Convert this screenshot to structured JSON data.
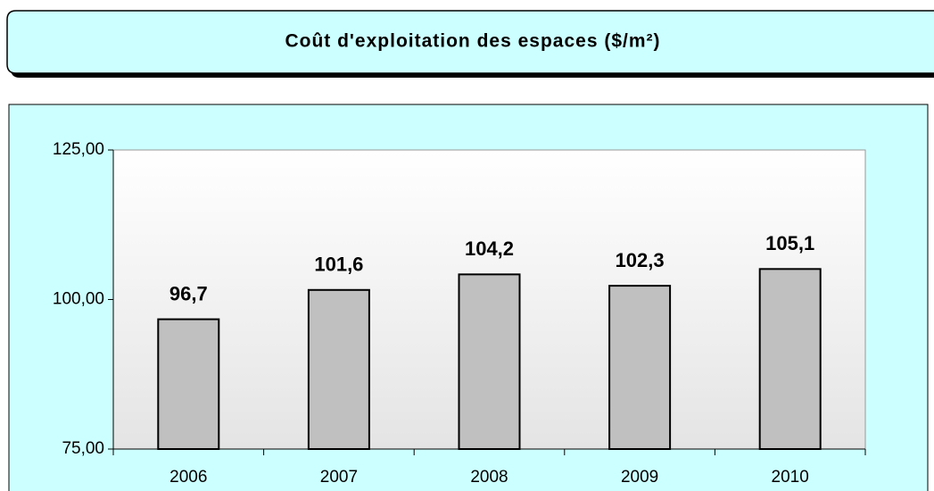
{
  "chart_data": {
    "type": "bar",
    "title": "Coût d'exploitation des espaces ($/m²)",
    "categories": [
      "2006",
      "2007",
      "2008",
      "2009",
      "2010"
    ],
    "values": [
      96.7,
      101.6,
      104.2,
      102.3,
      105.1
    ],
    "value_labels": [
      "96,7",
      "101,6",
      "104,2",
      "102,3",
      "105,1"
    ],
    "color": "#c0c0c0",
    "ylim": [
      75,
      125
    ],
    "yticks": [
      {
        "value": 75,
        "label": "75,00"
      },
      {
        "value": 100,
        "label": "100,00"
      },
      {
        "value": 125,
        "label": "125,00"
      }
    ],
    "grid": false
  }
}
